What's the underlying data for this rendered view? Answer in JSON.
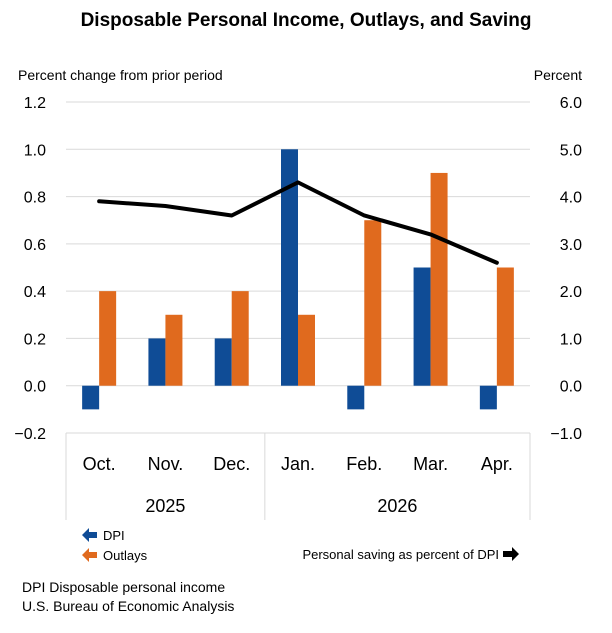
{
  "chart_data": {
    "type": "bar",
    "title": "Disposable Personal Income, Outlays, and Saving",
    "left_axis_label": "Percent change from prior period",
    "right_axis_label": "Percent",
    "categories": [
      "Oct.",
      "Nov.",
      "Dec.",
      "Jan.",
      "Feb.",
      "Mar.",
      "Apr."
    ],
    "year_groups": [
      {
        "label": "2025",
        "categories": [
          "Oct.",
          "Nov.",
          "Dec."
        ]
      },
      {
        "label": "2026",
        "categories": [
          "Jan.",
          "Feb.",
          "Mar.",
          "Apr."
        ]
      }
    ],
    "series": [
      {
        "name": "DPI",
        "type": "bar",
        "axis": "left",
        "color": "#0f4c96",
        "values": [
          -0.1,
          0.2,
          0.2,
          1.0,
          -0.1,
          0.5,
          -0.1
        ]
      },
      {
        "name": "Outlays",
        "type": "bar",
        "axis": "left",
        "color": "#e06a1e",
        "values": [
          0.4,
          0.3,
          0.4,
          0.3,
          0.7,
          0.9,
          0.5
        ]
      },
      {
        "name": "Personal saving as percent of DPI",
        "type": "line",
        "axis": "right",
        "color": "#000000",
        "values": [
          3.9,
          3.8,
          3.6,
          4.3,
          3.6,
          3.2,
          2.6
        ]
      }
    ],
    "left_ylim": [
      -0.2,
      1.2
    ],
    "left_ticks": [
      "−0.2",
      "0.0",
      "0.2",
      "0.4",
      "0.6",
      "0.8",
      "1.0",
      "1.2"
    ],
    "right_ylim": [
      -1.0,
      6.0
    ],
    "right_ticks": [
      "−1.0",
      "0.0",
      "1.0",
      "2.0",
      "3.0",
      "4.0",
      "5.0",
      "6.0"
    ],
    "grid": true,
    "legend_position": "bottom"
  },
  "legend": {
    "dpi_label": "DPI",
    "outlays_label": "Outlays",
    "saving_label": "Personal saving as percent of DPI"
  },
  "notes": {
    "line1": "DPI Disposable personal income",
    "line2": "U.S. Bureau of Economic Analysis"
  }
}
